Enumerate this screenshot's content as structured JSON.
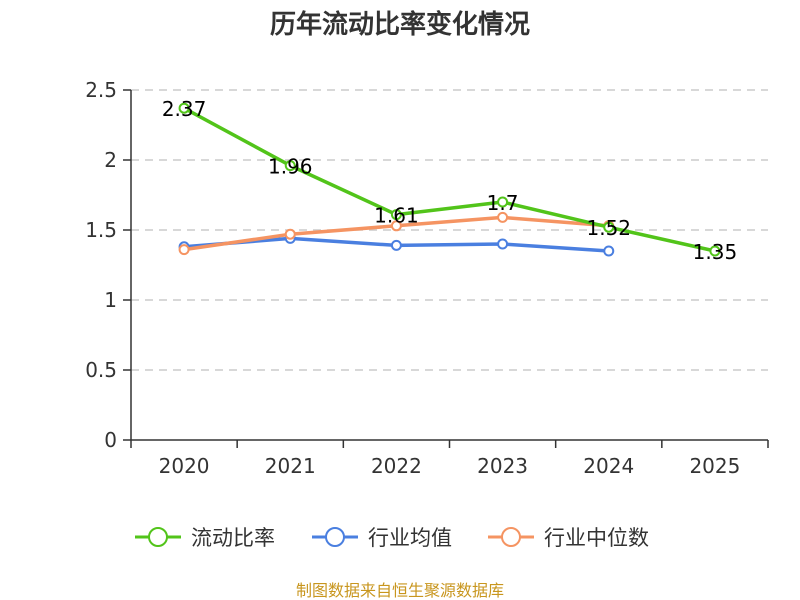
{
  "chart_data": {
    "type": "line",
    "title": "历年流动比率变化情况",
    "categories": [
      "2020",
      "2021",
      "2022",
      "2023",
      "2024",
      "2025"
    ],
    "ylim": [
      0,
      2.5
    ],
    "yticks": [
      "0",
      "0.5",
      "1",
      "1.5",
      "2",
      "2.5"
    ],
    "grid": true,
    "legend_position": "bottom",
    "series": [
      {
        "name": "流动比率",
        "color": "#52c41a",
        "values": [
          2.37,
          1.96,
          1.61,
          1.7,
          1.52,
          1.35
        ],
        "labels": [
          "2.37",
          "1.96",
          "1.61",
          "1.7",
          "1.52",
          "1.35"
        ]
      },
      {
        "name": "行业均值",
        "color": "#4a7fe0",
        "values": [
          1.38,
          1.44,
          1.39,
          1.4,
          1.35,
          null
        ]
      },
      {
        "name": "行业中位数",
        "color": "#f59462",
        "values": [
          1.36,
          1.47,
          1.53,
          1.59,
          1.53,
          null
        ]
      }
    ]
  },
  "source_text": "制图数据来自恒生聚源数据库",
  "source_color": "#c8961e"
}
